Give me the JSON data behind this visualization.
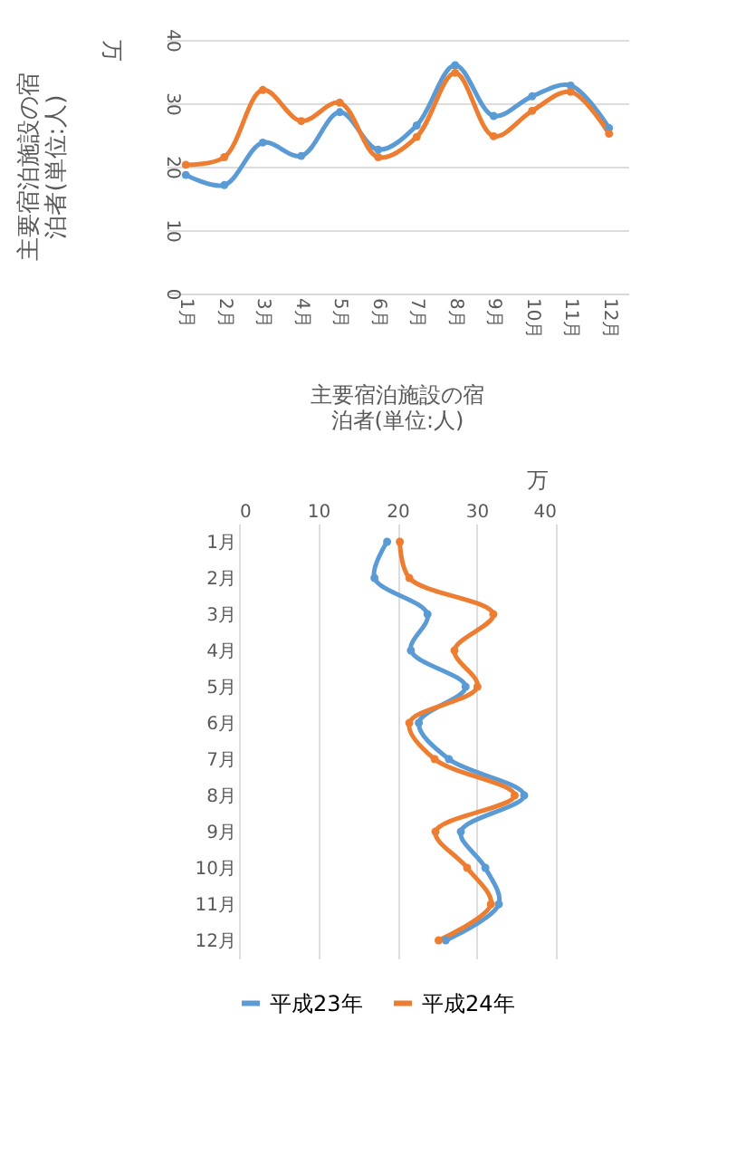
{
  "chart_data": [
    {
      "type": "line",
      "title": "主要宿泊施設の宿泊者(単位:人)",
      "annotations": [
        "万"
      ],
      "categories": [
        "1月",
        "2月",
        "3月",
        "4月",
        "5月",
        "6月",
        "7月",
        "8月",
        "9月",
        "10月",
        "11月",
        "12月"
      ],
      "series": [
        {
          "color": "#5b9bd5",
          "values": [
            18.7,
            17.1,
            23.8,
            21.7,
            28.6,
            22.7,
            26.5,
            36.0,
            28.0,
            31.1,
            32.8,
            26.1
          ]
        },
        {
          "color": "#ed7d31",
          "values": [
            20.3,
            21.5,
            32.1,
            27.2,
            30.1,
            21.5,
            24.7,
            34.8,
            24.8,
            28.8,
            31.8,
            25.2
          ]
        }
      ],
      "ylim": [
        0,
        40
      ],
      "yticks": [
        0,
        10,
        20,
        30,
        40
      ],
      "grid": "y",
      "marker": "circle",
      "legend": false
    },
    {
      "type": "line",
      "orientation": "horizontal",
      "title": "主要宿泊施設の宿泊者(単位:人)",
      "annotations": [
        "万"
      ],
      "categories": [
        "1月",
        "2月",
        "3月",
        "4月",
        "5月",
        "6月",
        "7月",
        "8月",
        "9月",
        "10月",
        "11月",
        "12月"
      ],
      "series": [
        {
          "name": "平成23年",
          "color": "#5b9bd5",
          "values": [
            18.7,
            17.1,
            23.8,
            21.7,
            28.6,
            22.7,
            26.5,
            36.0,
            28.0,
            31.1,
            32.8,
            26.1
          ]
        },
        {
          "name": "平成24年",
          "color": "#ed7d31",
          "values": [
            20.3,
            21.5,
            32.1,
            27.2,
            30.1,
            21.5,
            24.7,
            34.8,
            24.8,
            28.8,
            31.8,
            25.2
          ]
        }
      ],
      "xlim": [
        0,
        40
      ],
      "xticks": [
        0,
        10,
        20,
        30,
        40
      ],
      "grid": "x",
      "marker": "circle",
      "legend": "bottom"
    }
  ]
}
